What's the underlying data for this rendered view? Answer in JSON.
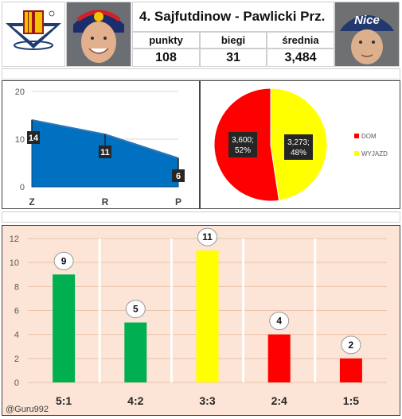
{
  "header": {
    "title": "4. Sajfutdinow - Pawlicki Prz.",
    "stats": [
      {
        "label": "punkty",
        "value": "108"
      },
      {
        "label": "biegi",
        "value": "31"
      },
      {
        "label": "średnia",
        "value": "3,484"
      }
    ],
    "cap_text": "Nice"
  },
  "colors": {
    "blue": "#0070c0",
    "red": "#ff0000",
    "yellow": "#ffff00",
    "green": "#00b050",
    "peach": "#fce4d6"
  },
  "chart_data": [
    {
      "type": "area",
      "categories": [
        "Z",
        "R",
        "P"
      ],
      "values": [
        14,
        11,
        6
      ],
      "ylim": [
        0,
        20
      ],
      "yticks": [
        0,
        10,
        20
      ],
      "data_labels": [
        "14",
        "11",
        "6"
      ]
    },
    {
      "type": "pie",
      "labels": [
        "DOM",
        "WYJAZD"
      ],
      "values": [
        3.6,
        3.273
      ],
      "percent": [
        52,
        48
      ],
      "data_labels": [
        {
          "value": "3,600;",
          "pct": "52%"
        },
        {
          "value": "3,273;",
          "pct": "48%"
        }
      ],
      "legend": "right"
    },
    {
      "type": "bar",
      "categories": [
        "5:1",
        "4:2",
        "3:3",
        "2:4",
        "1:5"
      ],
      "values": [
        9,
        5,
        11,
        4,
        2
      ],
      "ylim": [
        0,
        12
      ],
      "yticks": [
        0,
        2,
        4,
        6,
        8,
        10,
        12
      ],
      "data_labels": [
        "9",
        "5",
        "11",
        "4",
        "2"
      ],
      "bar_colors": [
        "#00b050",
        "#00b050",
        "#ffff00",
        "#ff0000",
        "#ff0000"
      ],
      "watermark": "@Guru992"
    }
  ]
}
